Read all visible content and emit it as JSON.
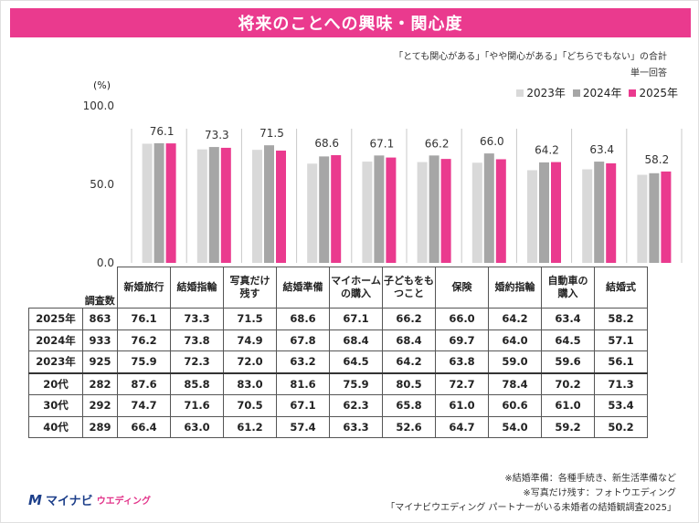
{
  "title": "将来のことへの興味・関心度",
  "notes": [
    "「とても関心がある」「やや関心がある」「どちらでもない」の合計",
    "単一回答"
  ],
  "unit": "(%)",
  "colors": {
    "y2023": "#d9d9d9",
    "y2024": "#a6a6a6",
    "y2025": "#ea3a8e",
    "title_bg": "#ea3a8e"
  },
  "chart_data": {
    "type": "bar",
    "categories": [
      "新婚旅行",
      "結婚指輪",
      "写真だけ残す",
      "結婚準備",
      "マイホームの購入",
      "子どもをもつこと",
      "保険",
      "婚約指輪",
      "自動車の購入",
      "結婚式"
    ],
    "series": [
      {
        "name": "2023年",
        "values": [
          75.9,
          72.3,
          72.0,
          63.2,
          64.5,
          64.2,
          63.8,
          59.0,
          59.6,
          56.1
        ]
      },
      {
        "name": "2024年",
        "values": [
          76.2,
          73.8,
          74.9,
          67.8,
          68.4,
          68.4,
          69.7,
          64.0,
          64.5,
          57.1
        ]
      },
      {
        "name": "2025年",
        "values": [
          76.1,
          73.3,
          71.5,
          68.6,
          67.1,
          66.2,
          66.0,
          64.2,
          63.4,
          58.2
        ]
      }
    ],
    "data_labels": [
      "76.1",
      "73.3",
      "71.5",
      "68.6",
      "67.1",
      "66.2",
      "66.0",
      "64.2",
      "63.4",
      "58.2"
    ],
    "yticks": [
      "100.0",
      "50.0",
      "0.0"
    ],
    "ylim": [
      0,
      100
    ],
    "legend": "top-right",
    "grid": false
  },
  "table": {
    "n_header": "調査数",
    "category_labels": [
      [
        "新婚旅行"
      ],
      [
        "結婚指輪"
      ],
      [
        "写真だけ",
        "残す"
      ],
      [
        "結婚準備"
      ],
      [
        "マイホーム",
        "の購入"
      ],
      [
        "子どもをも",
        "つこと"
      ],
      [
        "保険"
      ],
      [
        "婚約指輪"
      ],
      [
        "自動車の",
        "購入"
      ],
      [
        "結婚式"
      ]
    ],
    "rows": [
      {
        "label": "2025年",
        "n": "863",
        "values": [
          "76.1",
          "73.3",
          "71.5",
          "68.6",
          "67.1",
          "66.2",
          "66.0",
          "64.2",
          "63.4",
          "58.2"
        ]
      },
      {
        "label": "2024年",
        "n": "933",
        "values": [
          "76.2",
          "73.8",
          "74.9",
          "67.8",
          "68.4",
          "68.4",
          "69.7",
          "64.0",
          "64.5",
          "57.1"
        ]
      },
      {
        "label": "2023年",
        "n": "925",
        "values": [
          "75.9",
          "72.3",
          "72.0",
          "63.2",
          "64.5",
          "64.2",
          "63.8",
          "59.0",
          "59.6",
          "56.1"
        ]
      },
      {
        "label": "20代",
        "n": "282",
        "values": [
          "87.6",
          "85.8",
          "83.0",
          "81.6",
          "75.9",
          "80.5",
          "72.7",
          "78.4",
          "70.2",
          "71.3"
        ]
      },
      {
        "label": "30代",
        "n": "292",
        "values": [
          "74.7",
          "71.6",
          "70.5",
          "67.1",
          "62.3",
          "65.8",
          "61.0",
          "60.6",
          "61.0",
          "53.4"
        ]
      },
      {
        "label": "40代",
        "n": "289",
        "values": [
          "66.4",
          "63.0",
          "61.2",
          "57.4",
          "63.3",
          "52.6",
          "64.7",
          "54.0",
          "59.2",
          "50.2"
        ]
      }
    ]
  },
  "footnotes": [
    "※結婚準備：各種手続き、新生活準備など",
    "※写真だけ残す：フォトウエディング",
    "「マイナビウエディング パートナーがいる未婚者の結婚観調査2025」"
  ],
  "logo": {
    "mark": "M",
    "name": "マイナビ",
    "sub": "ウエディング"
  }
}
